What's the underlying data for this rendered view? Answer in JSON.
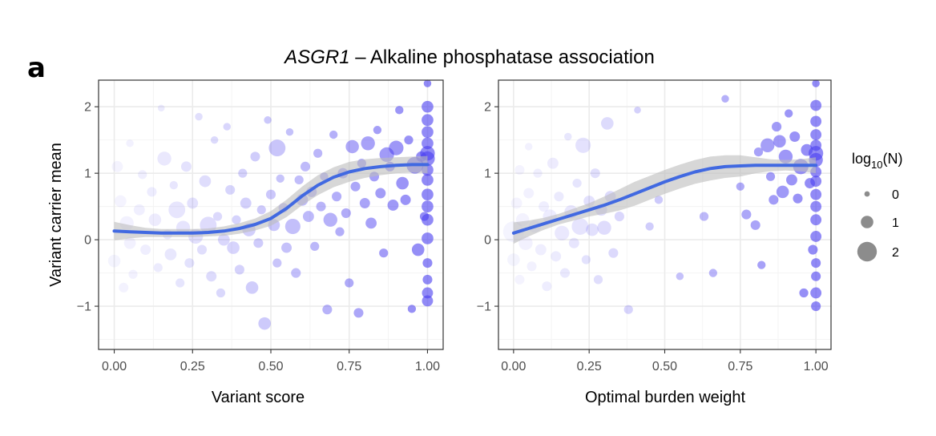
{
  "figure": {
    "panel_letter": "a",
    "title_gene": "ASGR1",
    "title_rest": " – Alkaline phosphatase association"
  },
  "colors": {
    "point": "#4b3ff0",
    "smooth": "#4169e1",
    "band": "#bdbdbd",
    "legend_point": "#8c8c8c"
  },
  "chart_data": [
    {
      "type": "scatter",
      "id": "left",
      "xlabel": "Variant score",
      "ylabel": "Variant carrier mean",
      "xlim": [
        -0.05,
        1.05
      ],
      "ylim": [
        -1.65,
        2.4
      ],
      "xticks": [
        0,
        0.25,
        0.5,
        0.75,
        1
      ],
      "xtick_labels": [
        "0.00",
        "0.25",
        "0.50",
        "0.75",
        "1.00"
      ],
      "yticks": [
        -1,
        0,
        1,
        2
      ],
      "ytick_labels": [
        "−1",
        "0",
        "1",
        "2"
      ],
      "points": [
        [
          0.0,
          -0.32,
          1.0
        ],
        [
          0.01,
          1.1,
          0.8
        ],
        [
          0.02,
          0.58,
          0.9
        ],
        [
          0.03,
          -0.72,
          0.6
        ],
        [
          0.04,
          0.25,
          1.2
        ],
        [
          0.05,
          -0.05,
          0.9
        ],
        [
          0.05,
          1.45,
          0.3
        ],
        [
          0.06,
          -0.52,
          0.5
        ],
        [
          0.08,
          0.45,
          0.8
        ],
        [
          0.09,
          0.98,
          0.5
        ],
        [
          0.1,
          -0.15,
          0.7
        ],
        [
          0.12,
          0.72,
          0.6
        ],
        [
          0.13,
          0.3,
          1.0
        ],
        [
          0.14,
          -0.42,
          0.5
        ],
        [
          0.15,
          1.98,
          0.2
        ],
        [
          0.16,
          1.22,
          1.2
        ],
        [
          0.17,
          0.08,
          0.6
        ],
        [
          0.18,
          -0.22,
          0.9
        ],
        [
          0.19,
          0.82,
          0.4
        ],
        [
          0.2,
          0.45,
          1.6
        ],
        [
          0.21,
          -0.65,
          0.5
        ],
        [
          0.22,
          0.18,
          1.2
        ],
        [
          0.23,
          1.1,
          0.7
        ],
        [
          0.24,
          -0.35,
          0.6
        ],
        [
          0.25,
          0.55,
          0.8
        ],
        [
          0.26,
          0.05,
          1.3
        ],
        [
          0.27,
          1.85,
          0.3
        ],
        [
          0.28,
          -0.15,
          0.6
        ],
        [
          0.29,
          0.88,
          0.9
        ],
        [
          0.3,
          0.22,
          1.6
        ],
        [
          0.31,
          -0.55,
          0.7
        ],
        [
          0.32,
          1.5,
          0.3
        ],
        [
          0.33,
          0.35,
          0.5
        ],
        [
          0.34,
          -0.8,
          0.5
        ],
        [
          0.35,
          0.0,
          0.9
        ],
        [
          0.36,
          1.7,
          0.3
        ],
        [
          0.37,
          0.75,
          0.6
        ],
        [
          0.38,
          -0.12,
          1.0
        ],
        [
          0.39,
          0.3,
          0.5
        ],
        [
          0.4,
          -0.45,
          0.6
        ],
        [
          0.41,
          1.0,
          0.5
        ],
        [
          0.42,
          0.55,
          0.8
        ],
        [
          0.43,
          0.15,
          1.1
        ],
        [
          0.44,
          -0.72,
          1.0
        ],
        [
          0.45,
          1.25,
          0.6
        ],
        [
          0.46,
          -0.05,
          0.6
        ],
        [
          0.47,
          0.45,
          0.5
        ],
        [
          0.48,
          -1.26,
          1.0
        ],
        [
          0.49,
          1.8,
          0.3
        ],
        [
          0.5,
          0.68,
          0.6
        ],
        [
          0.51,
          0.22,
          0.9
        ],
        [
          0.52,
          1.38,
          1.6
        ],
        [
          0.52,
          -0.35,
          0.5
        ],
        [
          0.53,
          0.92,
          0.4
        ],
        [
          0.54,
          0.48,
          0.6
        ],
        [
          0.55,
          -0.12,
          0.7
        ],
        [
          0.56,
          1.62,
          0.3
        ],
        [
          0.57,
          0.2,
          1.4
        ],
        [
          0.58,
          -0.5,
          0.6
        ],
        [
          0.59,
          0.9,
          0.5
        ],
        [
          0.6,
          0.6,
          0.9
        ],
        [
          0.61,
          1.1,
          0.6
        ],
        [
          0.62,
          0.35,
          0.8
        ],
        [
          0.63,
          0.72,
          0.7
        ],
        [
          0.64,
          -0.1,
          0.5
        ],
        [
          0.65,
          1.3,
          0.5
        ],
        [
          0.66,
          0.5,
          0.6
        ],
        [
          0.67,
          0.95,
          0.4
        ],
        [
          0.68,
          -1.05,
          0.6
        ],
        [
          0.69,
          0.3,
          1.2
        ],
        [
          0.7,
          1.58,
          0.4
        ],
        [
          0.71,
          0.65,
          0.6
        ],
        [
          0.72,
          0.12,
          0.5
        ],
        [
          0.73,
          1.0,
          0.7
        ],
        [
          0.74,
          0.4,
          0.6
        ],
        [
          0.75,
          -0.65,
          0.5
        ],
        [
          0.76,
          1.4,
          1.1
        ],
        [
          0.77,
          0.8,
          0.6
        ],
        [
          0.78,
          -1.1,
          0.6
        ],
        [
          0.79,
          1.15,
          0.5
        ],
        [
          0.8,
          0.55,
          0.7
        ],
        [
          0.81,
          1.45,
          1.2
        ],
        [
          0.82,
          0.25,
          0.8
        ],
        [
          0.83,
          0.95,
          0.6
        ],
        [
          0.84,
          1.65,
          0.4
        ],
        [
          0.85,
          0.7,
          0.7
        ],
        [
          0.86,
          -0.2,
          0.5
        ],
        [
          0.87,
          1.28,
          1.3
        ],
        [
          0.88,
          1.1,
          0.6
        ],
        [
          0.89,
          0.52,
          0.8
        ],
        [
          0.9,
          1.38,
          1.3
        ],
        [
          0.91,
          1.95,
          0.4
        ],
        [
          0.92,
          0.85,
          1.0
        ],
        [
          0.93,
          0.6,
          0.7
        ],
        [
          0.94,
          1.5,
          0.5
        ],
        [
          0.95,
          -1.04,
          0.4
        ],
        [
          0.96,
          1.12,
          1.6
        ],
        [
          0.97,
          -0.15,
          1.0
        ],
        [
          0.98,
          1.25,
          0.7
        ],
        [
          0.99,
          0.35,
          0.5
        ],
        [
          1.0,
          2.35,
          0.3
        ],
        [
          1.0,
          2.0,
          0.9
        ],
        [
          1.0,
          1.8,
          0.9
        ],
        [
          1.0,
          1.62,
          0.9
        ],
        [
          1.0,
          1.45,
          0.9
        ],
        [
          1.0,
          1.3,
          1.3
        ],
        [
          1.0,
          1.22,
          1.3
        ],
        [
          1.0,
          1.05,
          0.9
        ],
        [
          1.0,
          0.9,
          0.9
        ],
        [
          1.0,
          0.68,
          0.9
        ],
        [
          1.0,
          0.5,
          0.9
        ],
        [
          1.0,
          0.3,
          0.9
        ],
        [
          1.0,
          0.02,
          0.9
        ],
        [
          1.0,
          -0.35,
          0.6
        ],
        [
          1.0,
          -0.6,
          0.6
        ],
        [
          1.0,
          -0.8,
          0.8
        ],
        [
          1.0,
          -0.92,
          0.8
        ]
      ],
      "smooth": [
        [
          0.0,
          0.13
        ],
        [
          0.05,
          0.12
        ],
        [
          0.1,
          0.11
        ],
        [
          0.15,
          0.1
        ],
        [
          0.2,
          0.1
        ],
        [
          0.25,
          0.1
        ],
        [
          0.3,
          0.11
        ],
        [
          0.35,
          0.13
        ],
        [
          0.4,
          0.17
        ],
        [
          0.45,
          0.23
        ],
        [
          0.5,
          0.32
        ],
        [
          0.55,
          0.47
        ],
        [
          0.6,
          0.66
        ],
        [
          0.65,
          0.82
        ],
        [
          0.7,
          0.94
        ],
        [
          0.75,
          1.02
        ],
        [
          0.8,
          1.07
        ],
        [
          0.85,
          1.1
        ],
        [
          0.9,
          1.12
        ],
        [
          0.95,
          1.13
        ],
        [
          1.0,
          1.13
        ]
      ],
      "band_halfwidth": [
        0.14,
        0.1,
        0.07,
        0.06,
        0.06,
        0.06,
        0.06,
        0.07,
        0.08,
        0.09,
        0.11,
        0.13,
        0.14,
        0.15,
        0.15,
        0.15,
        0.14,
        0.13,
        0.12,
        0.12,
        0.13
      ]
    },
    {
      "type": "scatter",
      "id": "right",
      "xlabel": "Optimal burden weight",
      "ylabel": "",
      "xlim": [
        -0.05,
        1.05
      ],
      "ylim": [
        -1.65,
        2.4
      ],
      "xticks": [
        0,
        0.25,
        0.5,
        0.75,
        1
      ],
      "xtick_labels": [
        "0.00",
        "0.25",
        "0.50",
        "0.75",
        "1.00"
      ],
      "yticks": [
        -1,
        0,
        1,
        2
      ],
      "ytick_labels": [
        "−1",
        "0",
        "1",
        "2"
      ],
      "points": [
        [
          0.0,
          0.12,
          2.2
        ],
        [
          0.0,
          -0.3,
          1.0
        ],
        [
          0.01,
          0.55,
          0.8
        ],
        [
          0.02,
          1.05,
          0.6
        ],
        [
          0.02,
          -0.6,
          0.6
        ],
        [
          0.03,
          0.3,
          1.1
        ],
        [
          0.04,
          -0.05,
          1.2
        ],
        [
          0.05,
          0.7,
          0.7
        ],
        [
          0.05,
          1.4,
          0.3
        ],
        [
          0.06,
          -0.4,
          0.6
        ],
        [
          0.07,
          0.2,
          1.0
        ],
        [
          0.08,
          1.0,
          0.5
        ],
        [
          0.09,
          -0.15,
          0.8
        ],
        [
          0.1,
          0.5,
          0.7
        ],
        [
          0.11,
          -0.7,
          0.6
        ],
        [
          0.12,
          0.35,
          1.2
        ],
        [
          0.13,
          1.15,
          0.8
        ],
        [
          0.14,
          -0.25,
          0.7
        ],
        [
          0.15,
          0.65,
          0.6
        ],
        [
          0.16,
          0.1,
          1.3
        ],
        [
          0.17,
          -0.5,
          0.6
        ],
        [
          0.18,
          1.55,
          0.3
        ],
        [
          0.19,
          0.42,
          1.1
        ],
        [
          0.2,
          -0.05,
          0.7
        ],
        [
          0.21,
          0.85,
          0.5
        ],
        [
          0.22,
          0.2,
          1.6
        ],
        [
          0.23,
          1.42,
          1.4
        ],
        [
          0.24,
          -0.3,
          0.5
        ],
        [
          0.25,
          0.58,
          0.8
        ],
        [
          0.26,
          0.15,
          1.0
        ],
        [
          0.27,
          1.0,
          0.6
        ],
        [
          0.28,
          -0.6,
          0.5
        ],
        [
          0.29,
          0.45,
          0.9
        ],
        [
          0.3,
          0.18,
          1.2
        ],
        [
          0.31,
          1.75,
          1.0
        ],
        [
          0.32,
          0.65,
          0.8
        ],
        [
          0.33,
          -0.2,
          0.6
        ],
        [
          0.35,
          0.35,
          0.6
        ],
        [
          0.38,
          -1.05,
          0.5
        ],
        [
          0.41,
          1.95,
          0.2
        ],
        [
          0.45,
          0.2,
          0.4
        ],
        [
          0.48,
          0.6,
          0.4
        ],
        [
          0.55,
          -0.55,
          0.3
        ],
        [
          0.63,
          0.35,
          0.5
        ],
        [
          0.66,
          -0.5,
          0.4
        ],
        [
          0.7,
          2.12,
          0.3
        ],
        [
          0.75,
          0.8,
          0.4
        ],
        [
          0.77,
          0.38,
          0.6
        ],
        [
          0.8,
          0.22,
          0.6
        ],
        [
          0.81,
          1.32,
          0.5
        ],
        [
          0.82,
          -0.38,
          0.4
        ],
        [
          0.84,
          1.42,
          1.2
        ],
        [
          0.85,
          0.95,
          0.5
        ],
        [
          0.86,
          0.6,
          0.6
        ],
        [
          0.87,
          1.7,
          0.6
        ],
        [
          0.88,
          1.48,
          1.0
        ],
        [
          0.89,
          0.72,
          1.0
        ],
        [
          0.9,
          1.25,
          1.2
        ],
        [
          0.91,
          1.9,
          0.4
        ],
        [
          0.92,
          0.9,
          0.8
        ],
        [
          0.93,
          1.55,
          0.7
        ],
        [
          0.94,
          0.62,
          0.6
        ],
        [
          0.95,
          1.1,
          1.4
        ],
        [
          0.96,
          -0.8,
          0.5
        ],
        [
          0.97,
          1.35,
          0.9
        ],
        [
          0.98,
          0.85,
          0.7
        ],
        [
          0.99,
          -0.15,
          0.6
        ],
        [
          1.0,
          2.35,
          0.3
        ],
        [
          1.0,
          2.02,
          0.8
        ],
        [
          1.0,
          1.78,
          0.8
        ],
        [
          1.0,
          1.58,
          0.8
        ],
        [
          1.0,
          1.42,
          0.8
        ],
        [
          1.0,
          1.3,
          1.3
        ],
        [
          1.0,
          1.2,
          1.2
        ],
        [
          1.0,
          1.02,
          0.8
        ],
        [
          1.0,
          0.88,
          0.8
        ],
        [
          1.0,
          0.68,
          0.8
        ],
        [
          1.0,
          0.5,
          0.8
        ],
        [
          1.0,
          0.3,
          0.8
        ],
        [
          1.0,
          0.05,
          0.8
        ],
        [
          1.0,
          -0.35,
          0.6
        ],
        [
          1.0,
          -0.55,
          0.6
        ],
        [
          1.0,
          -0.8,
          0.8
        ],
        [
          1.0,
          -1.0,
          0.6
        ]
      ],
      "smooth": [
        [
          0.0,
          0.1
        ],
        [
          0.05,
          0.17
        ],
        [
          0.1,
          0.24
        ],
        [
          0.15,
          0.31
        ],
        [
          0.2,
          0.38
        ],
        [
          0.25,
          0.45
        ],
        [
          0.3,
          0.52
        ],
        [
          0.35,
          0.6
        ],
        [
          0.4,
          0.69
        ],
        [
          0.45,
          0.78
        ],
        [
          0.5,
          0.87
        ],
        [
          0.55,
          0.95
        ],
        [
          0.6,
          1.02
        ],
        [
          0.65,
          1.07
        ],
        [
          0.7,
          1.1
        ],
        [
          0.75,
          1.11
        ],
        [
          0.8,
          1.12
        ],
        [
          0.85,
          1.12
        ],
        [
          0.9,
          1.12
        ],
        [
          0.95,
          1.12
        ],
        [
          1.0,
          1.12
        ]
      ],
      "band_halfwidth": [
        0.16,
        0.12,
        0.09,
        0.08,
        0.09,
        0.1,
        0.13,
        0.16,
        0.18,
        0.18,
        0.18,
        0.18,
        0.18,
        0.18,
        0.17,
        0.16,
        0.12,
        0.09,
        0.08,
        0.09,
        0.12
      ]
    }
  ],
  "legend": {
    "title_main": "log",
    "title_sub": "10",
    "title_end": "(N)",
    "entries": [
      {
        "label": "0",
        "value": 0
      },
      {
        "label": "1",
        "value": 1
      },
      {
        "label": "2",
        "value": 2
      }
    ]
  }
}
